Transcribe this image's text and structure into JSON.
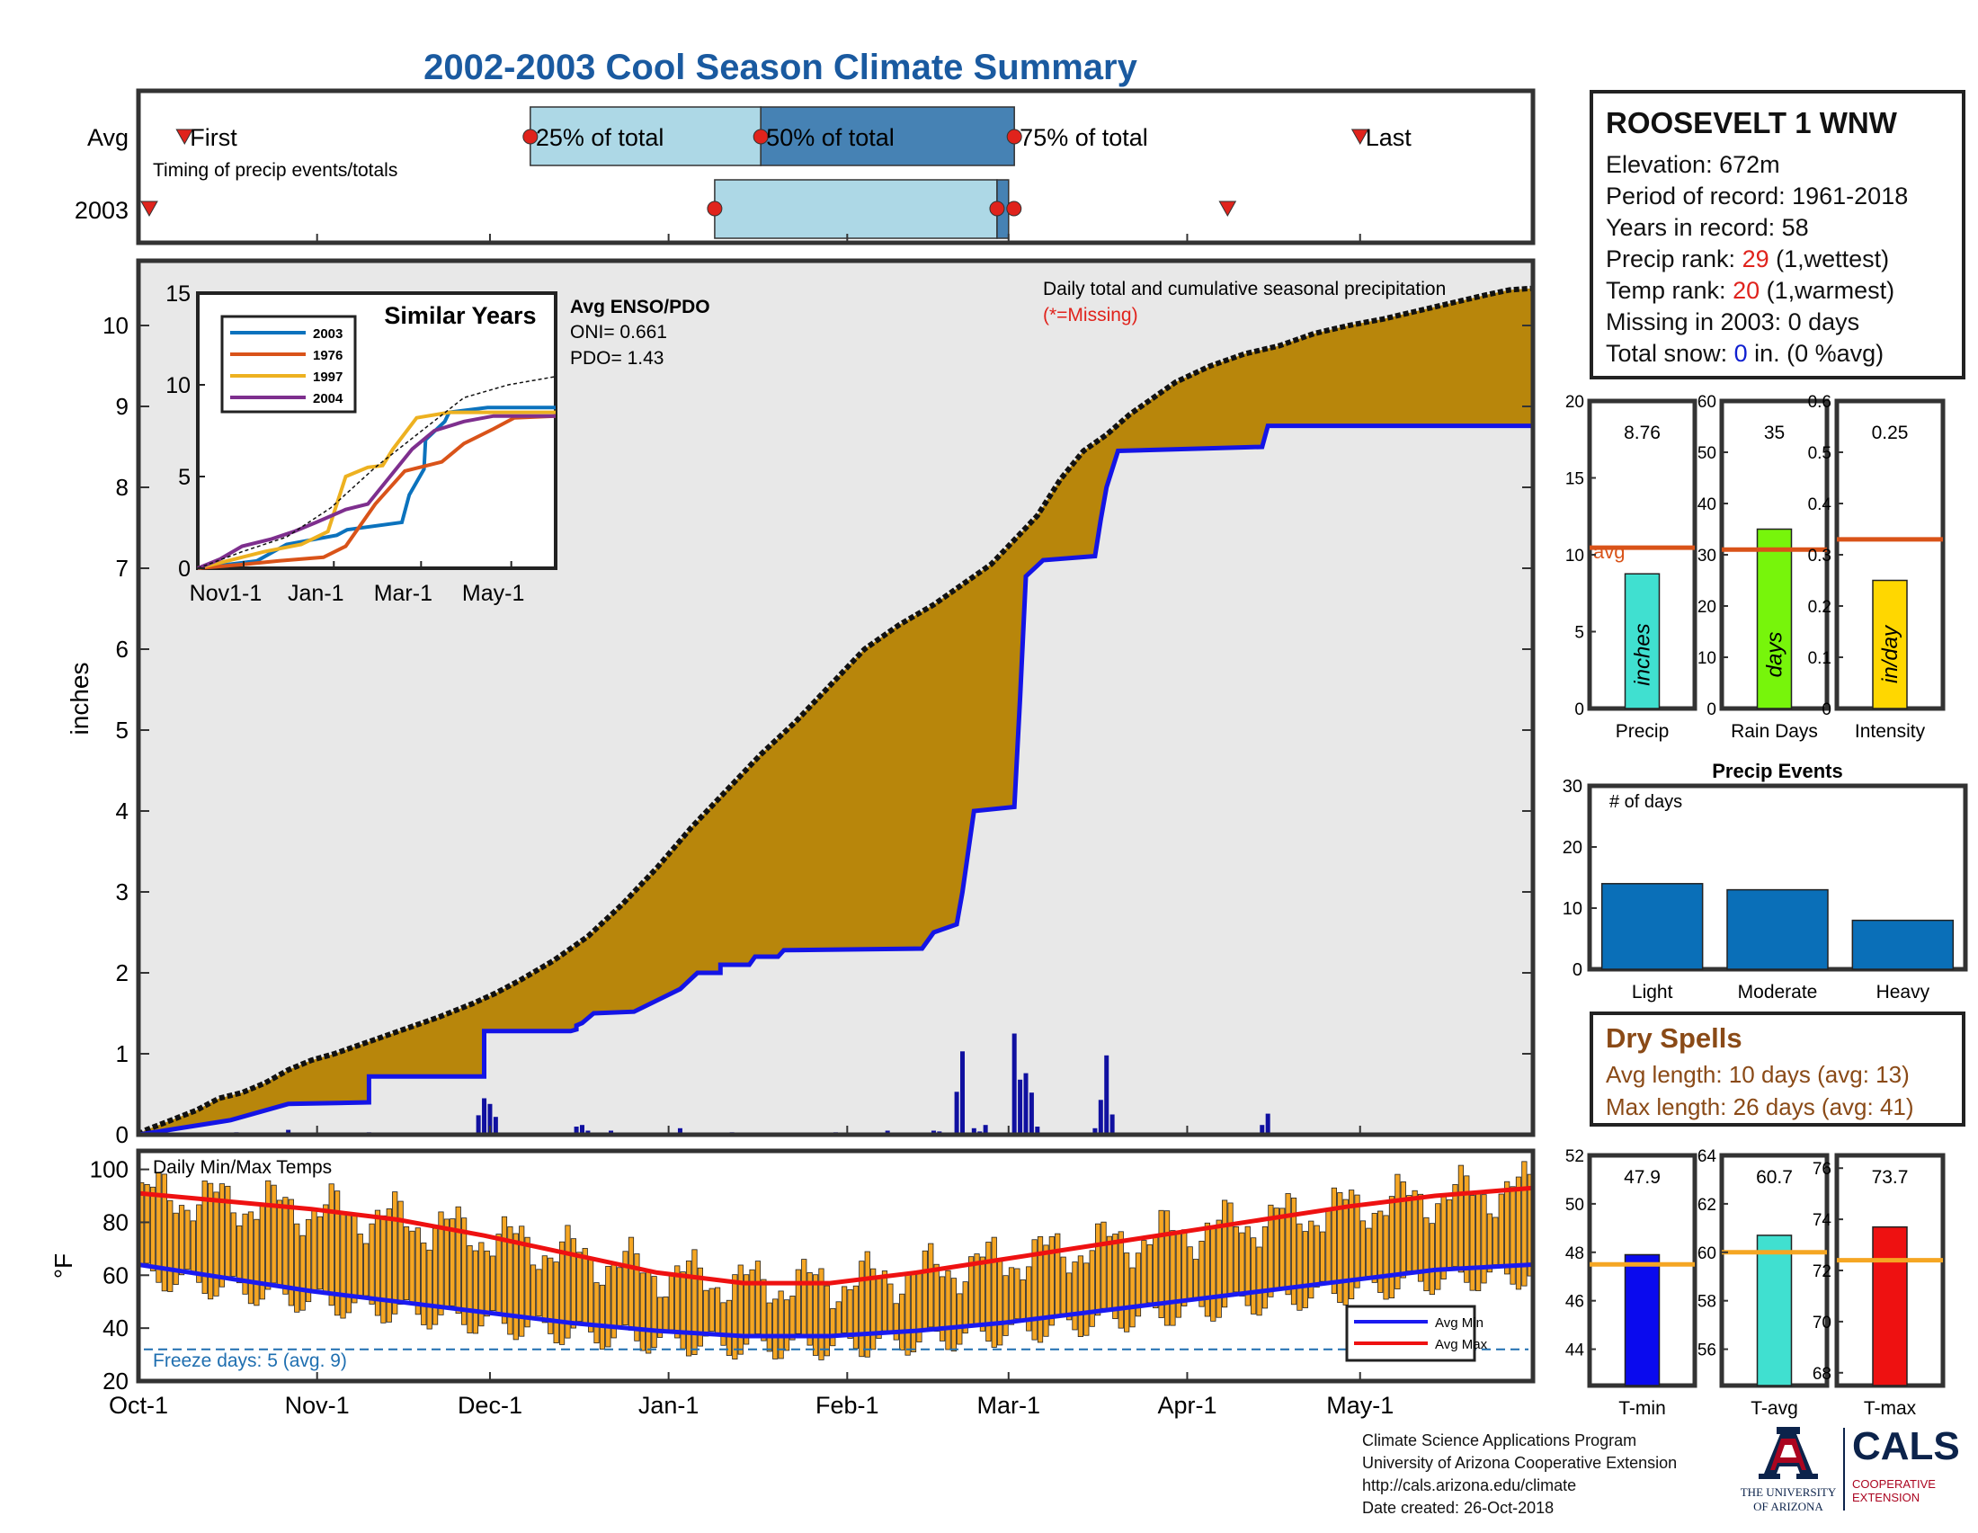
{
  "title": "2002-2003 Cool Season Climate Summary",
  "timing": {
    "row_labels": [
      "Avg",
      "2003"
    ],
    "subtitle": "Timing of precip events/totals",
    "marker_labels": {
      "first": "First",
      "q25": "25% of total",
      "q50": "50% of total",
      "q75": "75% of total",
      "last": "Last"
    },
    "avg": {
      "first": 8,
      "q25": 68,
      "q50": 108,
      "q75": 152,
      "last": 212
    },
    "y2003": {
      "first": -6,
      "q25": 100,
      "q50": 149,
      "q75": 151,
      "last": 189
    }
  },
  "main": {
    "ylabel": "inches",
    "annotation": "Daily total and cumulative seasonal precipitation",
    "missing_note": "(*=Missing)",
    "yticks": [
      0,
      1,
      2,
      3,
      4,
      5,
      6,
      7,
      8,
      9,
      10
    ],
    "ylim": [
      0,
      10.8
    ],
    "x_days": 242,
    "avg_cumulative": [
      [
        0,
        0
      ],
      [
        1,
        0.05
      ],
      [
        5,
        0.16
      ],
      [
        10,
        0.3
      ],
      [
        14,
        0.45
      ],
      [
        18,
        0.52
      ],
      [
        22,
        0.64
      ],
      [
        26,
        0.8
      ],
      [
        30,
        0.92
      ],
      [
        34,
        1.0
      ],
      [
        40,
        1.15
      ],
      [
        46,
        1.3
      ],
      [
        52,
        1.45
      ],
      [
        58,
        1.62
      ],
      [
        62,
        1.75
      ],
      [
        66,
        1.9
      ],
      [
        72,
        2.15
      ],
      [
        78,
        2.45
      ],
      [
        84,
        2.85
      ],
      [
        90,
        3.3
      ],
      [
        96,
        3.8
      ],
      [
        102,
        4.25
      ],
      [
        108,
        4.7
      ],
      [
        114,
        5.1
      ],
      [
        120,
        5.55
      ],
      [
        126,
        6.0
      ],
      [
        132,
        6.3
      ],
      [
        138,
        6.55
      ],
      [
        144,
        6.85
      ],
      [
        148,
        7.05
      ],
      [
        152,
        7.35
      ],
      [
        156,
        7.65
      ],
      [
        160,
        8.1
      ],
      [
        164,
        8.45
      ],
      [
        168,
        8.65
      ],
      [
        172,
        8.9
      ],
      [
        176,
        9.1
      ],
      [
        180,
        9.3
      ],
      [
        186,
        9.5
      ],
      [
        192,
        9.65
      ],
      [
        198,
        9.75
      ],
      [
        204,
        9.9
      ],
      [
        210,
        10.0
      ],
      [
        216,
        10.08
      ],
      [
        222,
        10.18
      ],
      [
        228,
        10.28
      ],
      [
        234,
        10.38
      ],
      [
        238,
        10.44
      ],
      [
        242,
        10.46
      ]
    ],
    "y2003_cumulative": [
      [
        0,
        0
      ],
      [
        16,
        0.18
      ],
      [
        26,
        0.38
      ],
      [
        40,
        0.4
      ],
      [
        40,
        0.72
      ],
      [
        60,
        0.72
      ],
      [
        60,
        1.28
      ],
      [
        75,
        1.28
      ],
      [
        76,
        1.3
      ],
      [
        76,
        1.35
      ],
      [
        77,
        1.38
      ],
      [
        79,
        1.5
      ],
      [
        86,
        1.52
      ],
      [
        94,
        1.8
      ],
      [
        97,
        2.0
      ],
      [
        101,
        2.0
      ],
      [
        101,
        2.1
      ],
      [
        106,
        2.1
      ],
      [
        107,
        2.2
      ],
      [
        111,
        2.2
      ],
      [
        112,
        2.28
      ],
      [
        136,
        2.3
      ],
      [
        138,
        2.5
      ],
      [
        142,
        2.6
      ],
      [
        143,
        3.0
      ],
      [
        145,
        4.0
      ],
      [
        152,
        4.05
      ],
      [
        153,
        5.4
      ],
      [
        154,
        6.9
      ],
      [
        157,
        7.1
      ],
      [
        166,
        7.15
      ],
      [
        167,
        7.6
      ],
      [
        168,
        8.0
      ],
      [
        170,
        8.45
      ],
      [
        195,
        8.5
      ],
      [
        196,
        8.76
      ],
      [
        242,
        8.76
      ]
    ],
    "daily_bars": [
      [
        17,
        0.03
      ],
      [
        26,
        0.06
      ],
      [
        40,
        0.03
      ],
      [
        59,
        0.24
      ],
      [
        60,
        0.45
      ],
      [
        61,
        0.38
      ],
      [
        62,
        0.22
      ],
      [
        76,
        0.1
      ],
      [
        77,
        0.12
      ],
      [
        78,
        0.05
      ],
      [
        82,
        0.05
      ],
      [
        94,
        0.08
      ],
      [
        103,
        0.03
      ],
      [
        113,
        0.02
      ],
      [
        121,
        0.03
      ],
      [
        130,
        0.05
      ],
      [
        138,
        0.05
      ],
      [
        139,
        0.04
      ],
      [
        142,
        0.53
      ],
      [
        143,
        1.03
      ],
      [
        145,
        0.08
      ],
      [
        146,
        0.04
      ],
      [
        147,
        0.12
      ],
      [
        152,
        1.25
      ],
      [
        153,
        0.68
      ],
      [
        154,
        0.76
      ],
      [
        155,
        0.52
      ],
      [
        156,
        0.1
      ],
      [
        166,
        0.08
      ],
      [
        167,
        0.43
      ],
      [
        168,
        0.98
      ],
      [
        169,
        0.25
      ],
      [
        195,
        0.12
      ],
      [
        196,
        0.26
      ]
    ]
  },
  "inset": {
    "title": "Similar Years",
    "yticks": [
      0,
      5,
      10,
      15
    ],
    "xticks": [
      "Nov1-1",
      "Jan-1",
      "Mar-1",
      "May-1"
    ],
    "legend": [
      {
        "name": "2003",
        "color": "#0b72bd"
      },
      {
        "name": "1976",
        "color": "#d95319"
      },
      {
        "name": "1997",
        "color": "#edb120"
      },
      {
        "name": "2004",
        "color": "#7e2f8e"
      }
    ],
    "enso_title": "Avg ENSO/PDO",
    "oni": "ONI= 0.661",
    "pdo": "PDO= 1.43",
    "series": [
      {
        "name": "2003",
        "points": [
          [
            0,
            0
          ],
          [
            40,
            0.4
          ],
          [
            60,
            1.3
          ],
          [
            94,
            1.8
          ],
          [
            101,
            2.1
          ],
          [
            138,
            2.5
          ],
          [
            143,
            4.0
          ],
          [
            153,
            5.4
          ],
          [
            154,
            7.0
          ],
          [
            167,
            8.0
          ],
          [
            170,
            8.5
          ],
          [
            196,
            8.76
          ],
          [
            242,
            8.76
          ]
        ]
      },
      {
        "name": "1976",
        "points": [
          [
            0,
            0
          ],
          [
            30,
            0.2
          ],
          [
            55,
            0.4
          ],
          [
            85,
            0.6
          ],
          [
            100,
            1.2
          ],
          [
            120,
            3.5
          ],
          [
            140,
            5.3
          ],
          [
            150,
            5.5
          ],
          [
            165,
            5.8
          ],
          [
            180,
            6.8
          ],
          [
            200,
            7.6
          ],
          [
            214,
            8.2
          ],
          [
            242,
            8.3
          ]
        ]
      },
      {
        "name": "1997",
        "points": [
          [
            0,
            0
          ],
          [
            20,
            0.4
          ],
          [
            45,
            0.9
          ],
          [
            70,
            1.3
          ],
          [
            88,
            2.0
          ],
          [
            100,
            5.0
          ],
          [
            115,
            5.5
          ],
          [
            125,
            5.6
          ],
          [
            132,
            6.5
          ],
          [
            148,
            8.2
          ],
          [
            170,
            8.5
          ],
          [
            242,
            8.5
          ]
        ]
      },
      {
        "name": "2004",
        "points": [
          [
            0,
            0
          ],
          [
            15,
            0.5
          ],
          [
            30,
            1.2
          ],
          [
            50,
            1.6
          ],
          [
            65,
            2.0
          ],
          [
            80,
            2.5
          ],
          [
            100,
            3.2
          ],
          [
            115,
            3.5
          ],
          [
            130,
            5.0
          ],
          [
            145,
            6.5
          ],
          [
            160,
            7.5
          ],
          [
            180,
            8.0
          ],
          [
            200,
            8.3
          ],
          [
            242,
            8.3
          ]
        ]
      },
      {
        "name": "avg",
        "points": [
          [
            0,
            0
          ],
          [
            30,
            0.9
          ],
          [
            60,
            1.7
          ],
          [
            90,
            3.3
          ],
          [
            120,
            5.5
          ],
          [
            150,
            7.4
          ],
          [
            180,
            9.3
          ],
          [
            210,
            10.0
          ],
          [
            242,
            10.45
          ]
        ]
      }
    ]
  },
  "temps": {
    "label": "Daily Min/Max Temps",
    "ylabel": "°F",
    "yticks": [
      20,
      40,
      60,
      80,
      100
    ],
    "freeze_note": "Freeze days: 5 (avg. 9)",
    "freeze_line": 32,
    "legend": [
      {
        "name": "Avg Min",
        "color": "#1a1af0"
      },
      {
        "name": "Avg Max",
        "color": "#ee1111"
      }
    ],
    "avg_max": [
      [
        0,
        91
      ],
      [
        15,
        88
      ],
      [
        30,
        85
      ],
      [
        45,
        81
      ],
      [
        60,
        75
      ],
      [
        75,
        68
      ],
      [
        90,
        61
      ],
      [
        105,
        57
      ],
      [
        120,
        57
      ],
      [
        135,
        61
      ],
      [
        150,
        66
      ],
      [
        165,
        71
      ],
      [
        180,
        76
      ],
      [
        195,
        81
      ],
      [
        210,
        86
      ],
      [
        225,
        90
      ],
      [
        242,
        93
      ]
    ],
    "avg_min": [
      [
        0,
        64
      ],
      [
        15,
        59
      ],
      [
        30,
        54
      ],
      [
        45,
        50
      ],
      [
        60,
        46
      ],
      [
        75,
        42
      ],
      [
        90,
        39
      ],
      [
        105,
        37
      ],
      [
        120,
        37
      ],
      [
        135,
        39
      ],
      [
        150,
        42
      ],
      [
        165,
        46
      ],
      [
        180,
        50
      ],
      [
        195,
        54
      ],
      [
        210,
        58
      ],
      [
        225,
        62
      ],
      [
        242,
        64
      ]
    ]
  },
  "xaxis": {
    "ticks": [
      {
        "label": "Oct-1",
        "day": 0
      },
      {
        "label": "Nov-1",
        "day": 31
      },
      {
        "label": "Dec-1",
        "day": 61
      },
      {
        "label": "Jan-1",
        "day": 92
      },
      {
        "label": "Feb-1",
        "day": 123
      },
      {
        "label": "Mar-1",
        "day": 151
      },
      {
        "label": "Apr-1",
        "day": 182
      },
      {
        "label": "May-1",
        "day": 212
      }
    ]
  },
  "station": {
    "name": "ROOSEVELT 1 WNW",
    "elevation": "Elevation: 672m",
    "period": "Period of record: 1961-2018",
    "years": "Years in record: 58",
    "precip_rank_label": "Precip rank: ",
    "precip_rank": "29",
    "precip_rank_note": " (1,wettest)",
    "temp_rank_label": "Temp rank: ",
    "temp_rank": "20",
    "temp_rank_note": " (1,warmest)",
    "missing": "Missing in 2003: 0 days",
    "snow_label": "Total snow: ",
    "snow_value": "0",
    "snow_note": " in. (0 %avg)"
  },
  "mini_bars": [
    {
      "category": "Precip",
      "value": 8.76,
      "value_label": "8.76",
      "avg": 10.46,
      "unit": "inches",
      "color": "#40e0d0",
      "ymax": 20,
      "yticks": [
        0,
        5,
        10,
        15,
        20
      ],
      "avg_label": "avg"
    },
    {
      "category": "Rain Days",
      "value": 35,
      "value_label": "35",
      "avg": 31,
      "unit": "days",
      "color": "#77f50b",
      "ymax": 60,
      "yticks": [
        0,
        10,
        20,
        30,
        40,
        50,
        60
      ],
      "avg_label": ""
    },
    {
      "category": "Intensity",
      "value": 0.25,
      "value_label": "0.25",
      "avg": 0.33,
      "unit": "in/day",
      "color": "#ffd700",
      "ymax": 0.6,
      "yticks": [
        0,
        0.1,
        0.2,
        0.3,
        0.4,
        0.5,
        0.6
      ],
      "avg_label": ""
    }
  ],
  "precip_events": {
    "title": "Precip Events",
    "ylabel": "# of days",
    "categories": [
      "Light",
      "Moderate",
      "Heavy"
    ],
    "values": [
      14,
      13,
      8
    ],
    "yticks": [
      0,
      10,
      20,
      30
    ],
    "color": "#0a6fb8"
  },
  "dry_spells": {
    "title": "Dry Spells",
    "avg_length": "Avg length: 10 days (avg: 13)",
    "max_length": "Max length: 26 days (avg: 41)"
  },
  "temp_bars": [
    {
      "category": "T-min",
      "value": 47.9,
      "value_label": "47.9",
      "avg": 47.5,
      "color": "#0a0aee",
      "ymin": 42.5,
      "ymax": 52,
      "yticks": [
        44,
        46,
        48,
        50,
        52
      ]
    },
    {
      "category": "T-avg",
      "value": 60.7,
      "value_label": "60.7",
      "avg": 60.0,
      "color": "#40e0d0",
      "ymin": 54.5,
      "ymax": 64,
      "yticks": [
        56,
        58,
        60,
        62,
        64
      ]
    },
    {
      "category": "T-max",
      "value": 73.7,
      "value_label": "73.7",
      "avg": 72.4,
      "color": "#ee1111",
      "ymin": 67.5,
      "ymax": 76.5,
      "yticks": [
        68,
        70,
        72,
        74,
        76
      ]
    }
  ],
  "footer": {
    "line1": "Climate Science Applications Program",
    "line2": "University of Arizona Cooperative Extension",
    "line3": "http://cals.arizona.edu/climate",
    "line4": " Date created: 26-Oct-2018"
  },
  "logos": {
    "ua_line1": "THE UNIVERSITY",
    "ua_line2": "OF ARIZONA",
    "cals": "CALS",
    "cals_sub1": "COOPERATIVE",
    "cals_sub2": "EXTENSION"
  }
}
